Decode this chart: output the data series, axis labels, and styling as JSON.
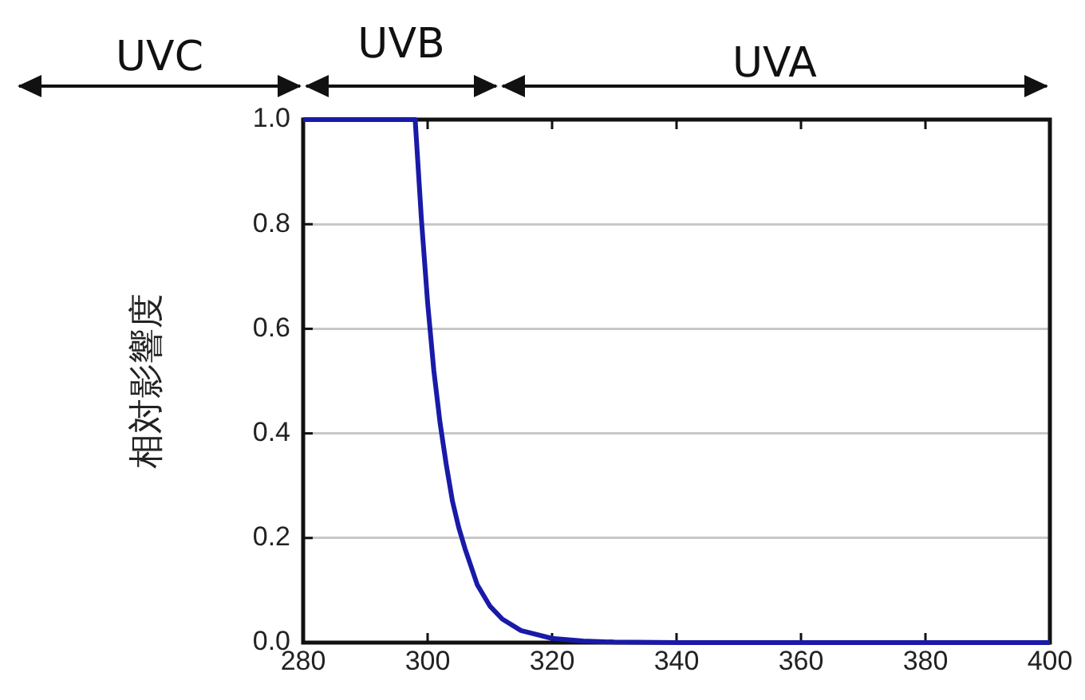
{
  "chart_data": {
    "type": "line",
    "ylabel": "相対影響度",
    "annotations": [
      "UVC",
      "UVB",
      "UVA"
    ],
    "x": [
      280,
      298,
      299,
      300,
      301,
      302,
      303,
      304,
      305,
      306,
      308,
      310,
      312,
      315,
      320,
      325,
      330,
      340,
      360,
      380,
      400
    ],
    "series": [
      {
        "color": "#1a1aa8",
        "values": [
          1,
          1,
          0.81,
          0.65,
          0.52,
          0.42,
          0.34,
          0.27,
          0.22,
          0.18,
          0.11,
          0.07,
          0.045,
          0.023,
          0.008,
          0.003,
          0.001,
          0,
          0,
          0,
          0
        ]
      }
    ],
    "xlim": [
      280,
      400
    ],
    "xticks": [
      280,
      300,
      320,
      340,
      360,
      380,
      400
    ],
    "ylim": [
      0,
      1
    ],
    "yticks": [
      {
        "value": 0,
        "label": "0.0"
      },
      0.2,
      0.4,
      0.6,
      0.8,
      {
        "value": 1,
        "label": "1.0"
      }
    ],
    "grid": "y",
    "marker": "none",
    "line_style": "solid",
    "legend": false
  }
}
